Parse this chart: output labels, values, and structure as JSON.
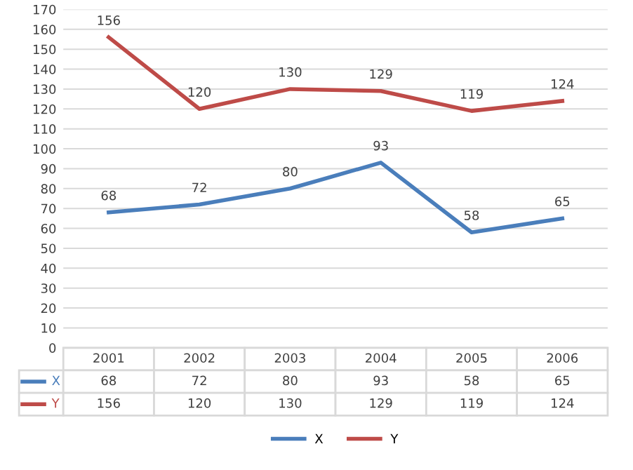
{
  "chart_data": {
    "type": "line",
    "categories": [
      "2001",
      "2002",
      "2003",
      "2004",
      "2005",
      "2006"
    ],
    "series": [
      {
        "name": "X",
        "color": "#4a7ebb",
        "values": [
          68,
          72,
          80,
          93,
          58,
          65
        ],
        "value_labels": [
          "68",
          "72",
          "80",
          "93",
          "58",
          "65"
        ]
      },
      {
        "name": "Y",
        "color": "#be4b48",
        "values": [
          156,
          120,
          130,
          129,
          119,
          124
        ],
        "value_labels": [
          "156",
          "120",
          "130",
          "129",
          "119",
          "124"
        ]
      }
    ],
    "ylim": [
      0,
      170
    ],
    "yticks": [
      0,
      10,
      20,
      30,
      40,
      50,
      60,
      70,
      80,
      90,
      100,
      110,
      120,
      130,
      140,
      150,
      160,
      170
    ],
    "annotations": [
      "68",
      "72",
      "80",
      "93",
      "58",
      "65",
      "156",
      "120",
      "130",
      "129",
      "119",
      "124"
    ],
    "grid": "y",
    "legend": "bottom",
    "data_labels": true,
    "marker": "none",
    "line_style": "solid"
  }
}
